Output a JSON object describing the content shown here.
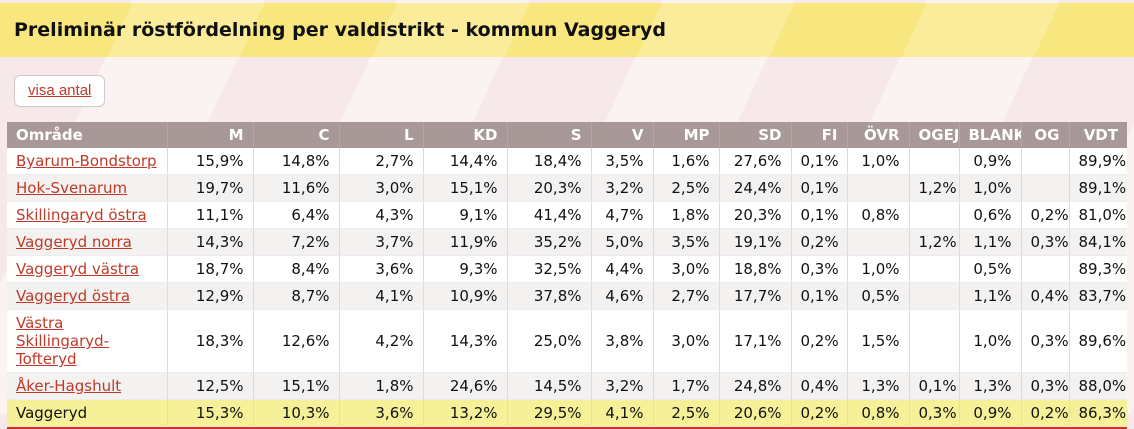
{
  "page": {
    "title": "Preliminär röstfördelning per valdistrikt - kommun Vaggeryd",
    "toggle_button_label": "visa antal"
  },
  "table": {
    "columns": [
      "Område",
      "M",
      "C",
      "L",
      "KD",
      "S",
      "V",
      "MP",
      "SD",
      "FI",
      "ÖVR",
      "OGEJ",
      "BLANK",
      "OG",
      "VDT"
    ],
    "rows": [
      {
        "name": "Byarum-Bondstorp",
        "link": true,
        "total": false,
        "values": [
          "15,9%",
          "14,8%",
          "2,7%",
          "14,4%",
          "18,4%",
          "3,5%",
          "1,6%",
          "27,6%",
          "0,1%",
          "1,0%",
          "",
          "0,9%",
          "",
          "89,9%"
        ]
      },
      {
        "name": "Hok-Svenarum",
        "link": true,
        "total": false,
        "values": [
          "19,7%",
          "11,6%",
          "3,0%",
          "15,1%",
          "20,3%",
          "3,2%",
          "2,5%",
          "24,4%",
          "0,1%",
          "",
          "1,2%",
          "1,0%",
          "",
          "89,1%"
        ]
      },
      {
        "name": "Skillingaryd östra",
        "link": true,
        "total": false,
        "values": [
          "11,1%",
          "6,4%",
          "4,3%",
          "9,1%",
          "41,4%",
          "4,7%",
          "1,8%",
          "20,3%",
          "0,1%",
          "0,8%",
          "",
          "0,6%",
          "0,2%",
          "81,0%"
        ]
      },
      {
        "name": "Vaggeryd norra",
        "link": true,
        "total": false,
        "values": [
          "14,3%",
          "7,2%",
          "3,7%",
          "11,9%",
          "35,2%",
          "5,0%",
          "3,5%",
          "19,1%",
          "0,2%",
          "",
          "1,2%",
          "1,1%",
          "0,3%",
          "84,1%"
        ]
      },
      {
        "name": "Vaggeryd västra",
        "link": true,
        "total": false,
        "values": [
          "18,7%",
          "8,4%",
          "3,6%",
          "9,3%",
          "32,5%",
          "4,4%",
          "3,0%",
          "18,8%",
          "0,3%",
          "1,0%",
          "",
          "0,5%",
          "",
          "89,3%"
        ]
      },
      {
        "name": "Vaggeryd östra",
        "link": true,
        "total": false,
        "values": [
          "12,9%",
          "8,7%",
          "4,1%",
          "10,9%",
          "37,8%",
          "4,6%",
          "2,7%",
          "17,7%",
          "0,1%",
          "0,5%",
          "",
          "1,1%",
          "0,4%",
          "83,7%"
        ]
      },
      {
        "name": "Västra Skillingaryd-Tofteryd",
        "link": true,
        "total": false,
        "values": [
          "18,3%",
          "12,6%",
          "4,2%",
          "14,3%",
          "25,0%",
          "3,8%",
          "3,0%",
          "17,1%",
          "0,2%",
          "1,5%",
          "",
          "1,0%",
          "0,3%",
          "89,6%"
        ]
      },
      {
        "name": "Åker-Hagshult",
        "link": true,
        "total": false,
        "values": [
          "12,5%",
          "15,1%",
          "1,8%",
          "24,6%",
          "14,5%",
          "3,2%",
          "1,7%",
          "24,8%",
          "0,4%",
          "1,3%",
          "0,1%",
          "1,3%",
          "0,3%",
          "88,0%"
        ]
      },
      {
        "name": "Vaggeryd",
        "link": false,
        "total": true,
        "values": [
          "15,3%",
          "10,3%",
          "3,6%",
          "13,2%",
          "29,5%",
          "4,1%",
          "2,5%",
          "20,6%",
          "0,2%",
          "0,8%",
          "0,3%",
          "0,9%",
          "0,2%",
          "86,3%"
        ]
      }
    ]
  },
  "colors": {
    "title_band_bg": "#f8e77f",
    "header_bg": "#a89898",
    "total_row_bg": "#f6f098",
    "link_red": "#bf3a28",
    "bottom_rule": "#d0341c"
  }
}
